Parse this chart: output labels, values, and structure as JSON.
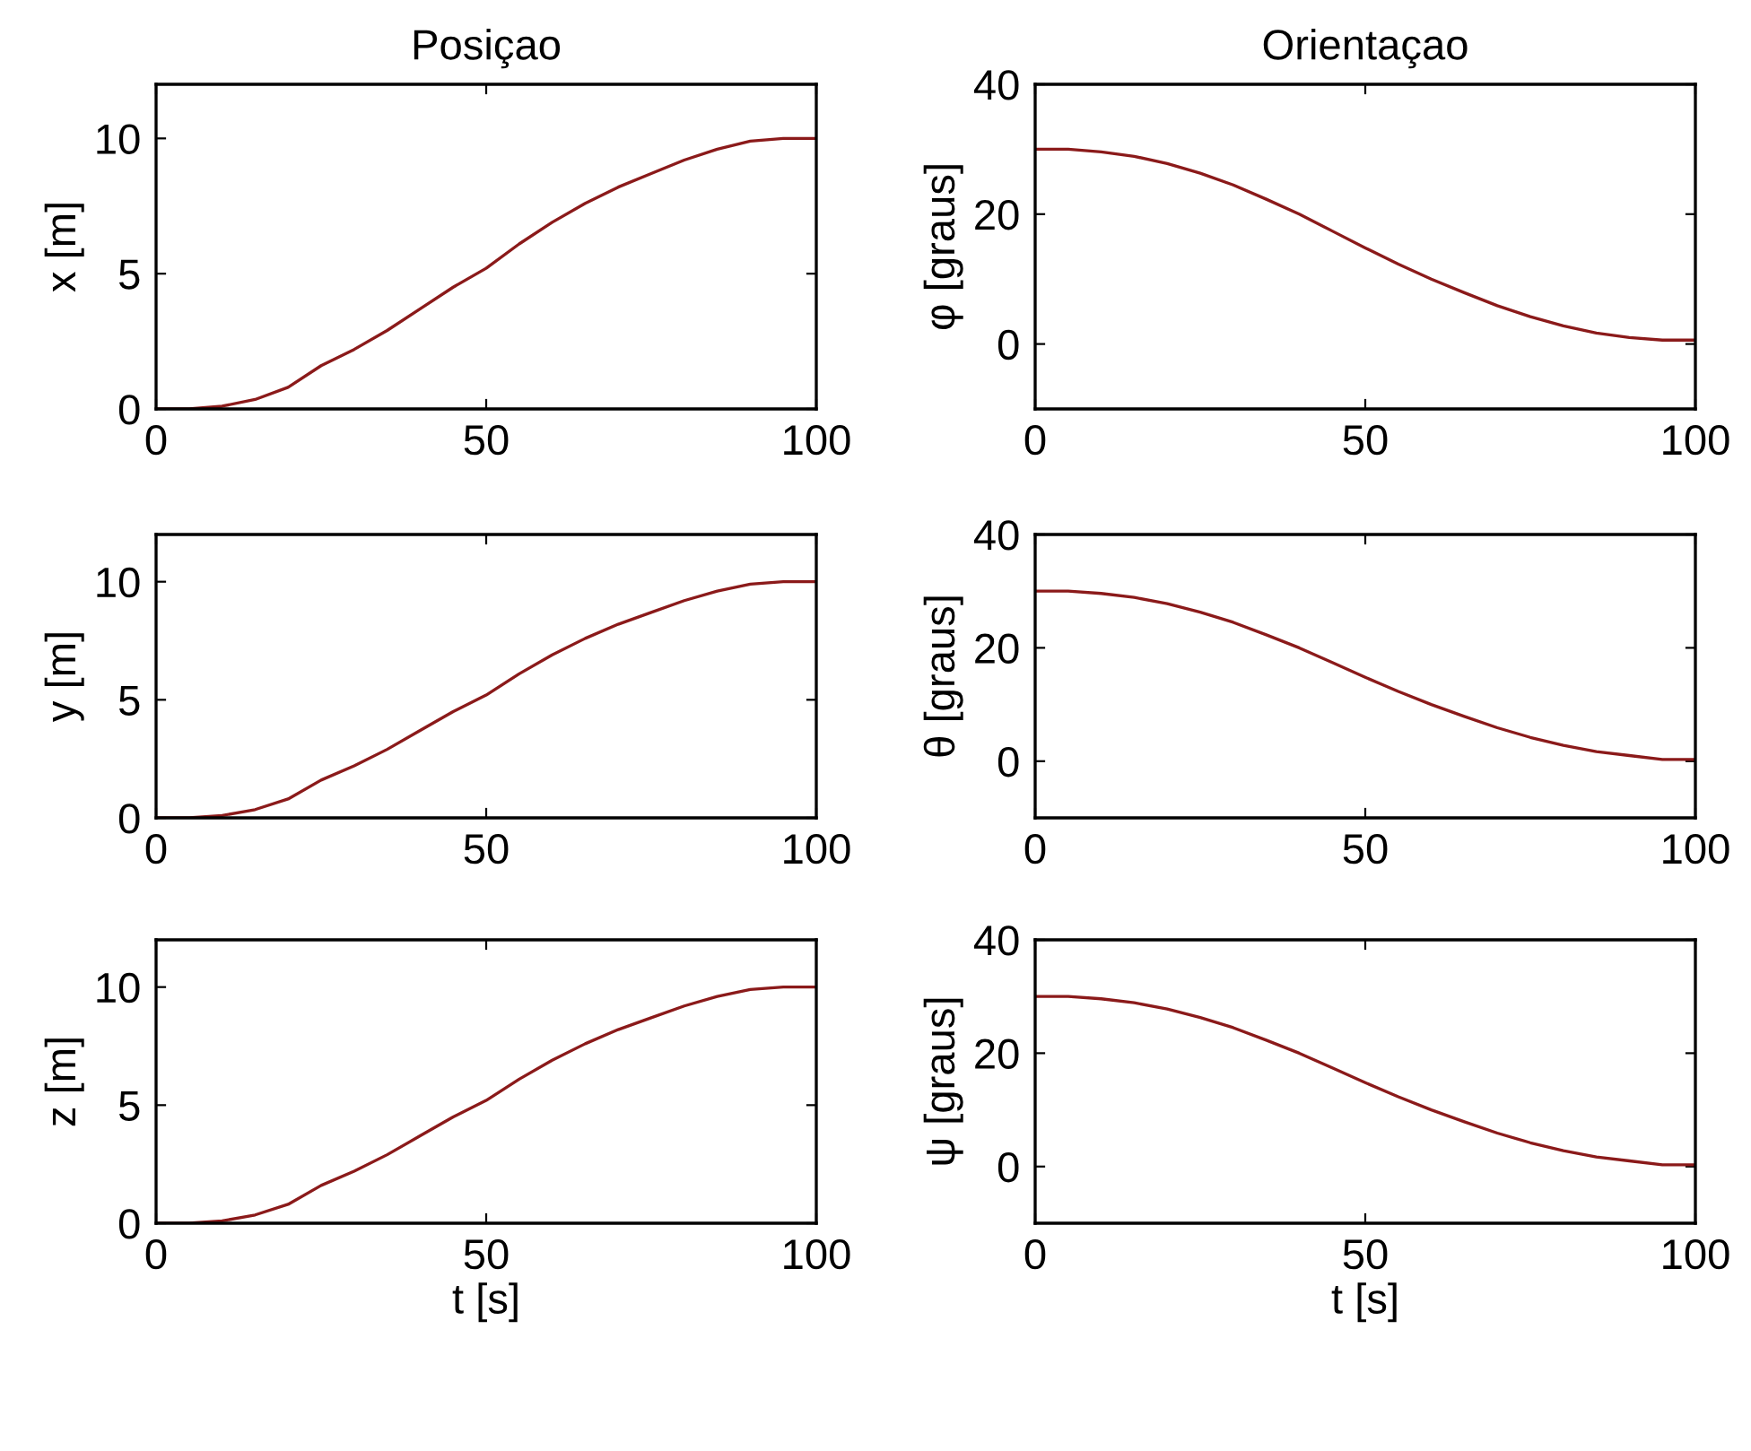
{
  "chart_data": [
    {
      "type": "line",
      "title": "Posiçao",
      "ylabel": "x [m]",
      "x": [
        0,
        5,
        10,
        15,
        20,
        25,
        30,
        35,
        40,
        45,
        50,
        55,
        60,
        65,
        70,
        75,
        80,
        85,
        90,
        95,
        100
      ],
      "series": [
        {
          "color": "#8b1a1a",
          "values": [
            0,
            0,
            0.1,
            0.35,
            0.8,
            1.6,
            2.2,
            2.9,
            3.7,
            4.5,
            5.2,
            6.1,
            6.9,
            7.6,
            8.2,
            8.7,
            9.2,
            9.6,
            9.9,
            10,
            10
          ]
        }
      ],
      "xlim": [
        0,
        100
      ],
      "xticks": [
        0,
        50,
        100
      ],
      "ylim": [
        0,
        12
      ],
      "yticks": [
        0,
        5,
        10
      ],
      "grid": false,
      "legend": false
    },
    {
      "type": "line",
      "title": "Orientaçao",
      "ylabel": "φ [graus]",
      "x": [
        0,
        5,
        10,
        15,
        20,
        25,
        30,
        35,
        40,
        45,
        50,
        55,
        60,
        65,
        70,
        75,
        80,
        85,
        90,
        95,
        100
      ],
      "series": [
        {
          "color": "#8b1a1a",
          "values": [
            30,
            30,
            29.6,
            28.9,
            27.8,
            26.3,
            24.5,
            22.3,
            20,
            17.4,
            14.8,
            12.3,
            10,
            7.9,
            5.9,
            4.2,
            2.8,
            1.7,
            1,
            0.6,
            0.6
          ]
        }
      ],
      "xlim": [
        0,
        100
      ],
      "xticks": [
        0,
        50,
        100
      ],
      "ylim": [
        -10,
        40
      ],
      "yticks": [
        0,
        20,
        40
      ],
      "grid": false,
      "legend": false
    },
    {
      "type": "line",
      "ylabel": "y [m]",
      "x": [
        0,
        5,
        10,
        15,
        20,
        25,
        30,
        35,
        40,
        45,
        50,
        55,
        60,
        65,
        70,
        75,
        80,
        85,
        90,
        95,
        100
      ],
      "series": [
        {
          "color": "#8b1a1a",
          "values": [
            0,
            0,
            0.1,
            0.35,
            0.8,
            1.6,
            2.2,
            2.9,
            3.7,
            4.5,
            5.2,
            6.1,
            6.9,
            7.6,
            8.2,
            8.7,
            9.2,
            9.6,
            9.9,
            10,
            10
          ]
        }
      ],
      "xlim": [
        0,
        100
      ],
      "xticks": [
        0,
        50,
        100
      ],
      "ylim": [
        0,
        12
      ],
      "yticks": [
        0,
        5,
        10
      ],
      "grid": false,
      "legend": false
    },
    {
      "type": "line",
      "ylabel": "θ [graus]",
      "x": [
        0,
        5,
        10,
        15,
        20,
        25,
        30,
        35,
        40,
        45,
        50,
        55,
        60,
        65,
        70,
        75,
        80,
        85,
        90,
        95,
        100
      ],
      "series": [
        {
          "color": "#8b1a1a",
          "values": [
            30,
            30,
            29.6,
            28.9,
            27.8,
            26.3,
            24.5,
            22.3,
            20,
            17.4,
            14.8,
            12.3,
            10,
            7.9,
            5.9,
            4.2,
            2.8,
            1.7,
            1,
            0.3,
            0.3
          ]
        }
      ],
      "xlim": [
        0,
        100
      ],
      "xticks": [
        0,
        50,
        100
      ],
      "ylim": [
        -10,
        40
      ],
      "yticks": [
        0,
        20,
        40
      ],
      "grid": false,
      "legend": false
    },
    {
      "type": "line",
      "ylabel": "z [m]",
      "xlabel": "t [s]",
      "x": [
        0,
        5,
        10,
        15,
        20,
        25,
        30,
        35,
        40,
        45,
        50,
        55,
        60,
        65,
        70,
        75,
        80,
        85,
        90,
        95,
        100
      ],
      "series": [
        {
          "color": "#8b1a1a",
          "values": [
            0,
            0,
            0.1,
            0.35,
            0.8,
            1.6,
            2.2,
            2.9,
            3.7,
            4.5,
            5.2,
            6.1,
            6.9,
            7.6,
            8.2,
            8.7,
            9.2,
            9.6,
            9.9,
            10,
            10
          ]
        }
      ],
      "xlim": [
        0,
        100
      ],
      "xticks": [
        0,
        50,
        100
      ],
      "ylim": [
        0,
        12
      ],
      "yticks": [
        0,
        5,
        10
      ],
      "grid": false,
      "legend": false
    },
    {
      "type": "line",
      "ylabel": "ψ [graus]",
      "xlabel": "t [s]",
      "x": [
        0,
        5,
        10,
        15,
        20,
        25,
        30,
        35,
        40,
        45,
        50,
        55,
        60,
        65,
        70,
        75,
        80,
        85,
        90,
        95,
        100
      ],
      "series": [
        {
          "color": "#8b1a1a",
          "values": [
            30,
            30,
            29.6,
            28.9,
            27.8,
            26.3,
            24.5,
            22.3,
            20,
            17.4,
            14.8,
            12.3,
            10,
            7.9,
            5.9,
            4.2,
            2.8,
            1.7,
            1,
            0.3,
            0.3
          ]
        }
      ],
      "xlim": [
        0,
        100
      ],
      "xticks": [
        0,
        50,
        100
      ],
      "ylim": [
        -10,
        40
      ],
      "yticks": [
        0,
        20,
        40
      ],
      "grid": false,
      "legend": false
    }
  ]
}
